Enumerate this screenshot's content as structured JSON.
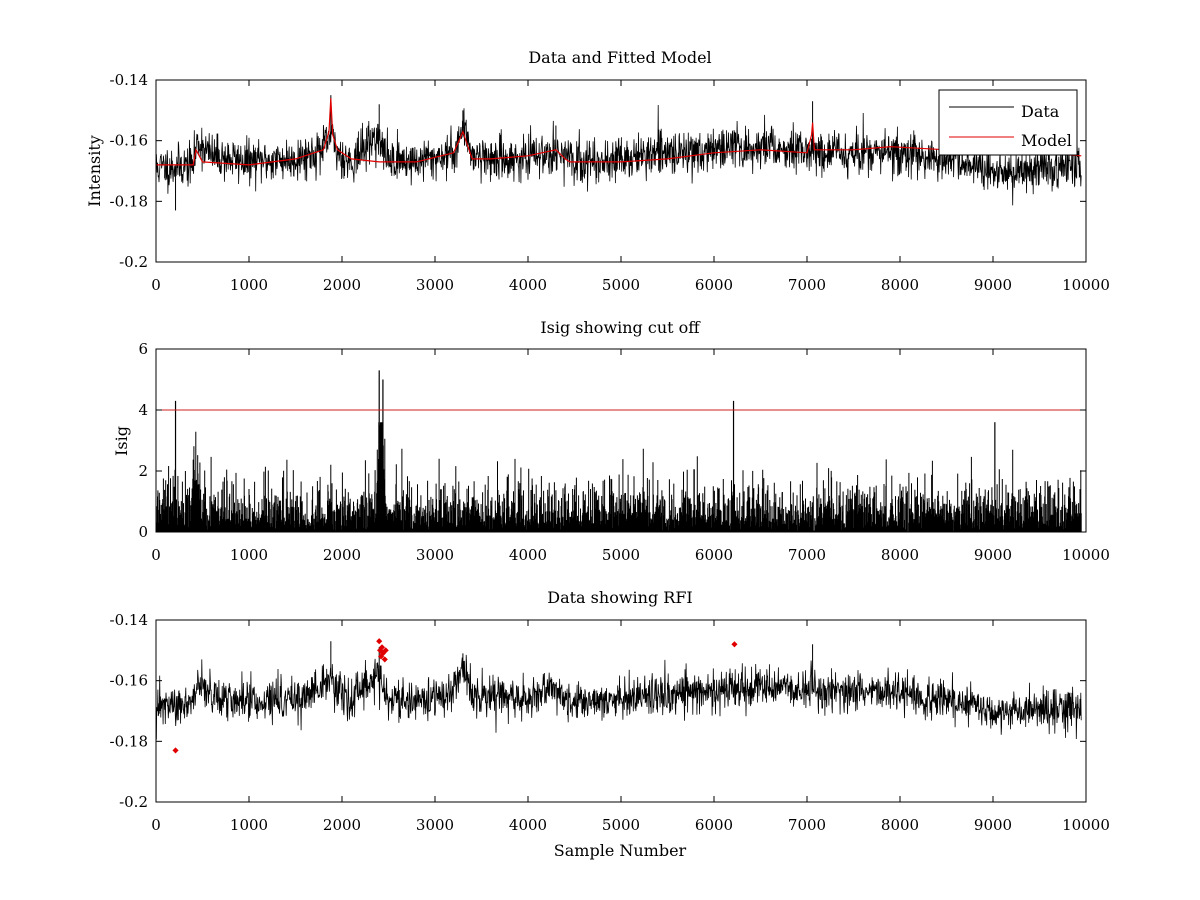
{
  "figure": {
    "background": "#ffffff"
  },
  "colors": {
    "data": "#000000",
    "model": "#e00000",
    "cutoff": "#d02020",
    "rfi": "#e00000"
  },
  "chart_data": [
    {
      "id": "top",
      "type": "line",
      "title": "Data and Fitted Model",
      "xlabel": "",
      "ylabel": "Intensity",
      "xlim": [
        0,
        10000
      ],
      "ylim": [
        -0.2,
        -0.14
      ],
      "ylim_display": "reversed (-0.14 at top, -0.2 at bottom)",
      "xticks": [
        0,
        1000,
        2000,
        3000,
        4000,
        5000,
        6000,
        7000,
        8000,
        9000,
        10000
      ],
      "yticks": [
        -0.14,
        -0.16,
        -0.18,
        -0.2
      ],
      "ytick_labels": [
        "-0.14",
        "-0.16",
        "-0.18",
        "-0.2"
      ],
      "legend": {
        "placement": "top-right",
        "entries": [
          "Data",
          "Model"
        ]
      },
      "series": [
        {
          "name": "Data",
          "kind": "noisy",
          "seed": 11,
          "noise_scale": 0.0035,
          "baseline_x": [
            0,
            400,
            450,
            600,
            1000,
            1500,
            1800,
            1880,
            1950,
            2100,
            2380,
            2420,
            2500,
            2800,
            3200,
            3300,
            3400,
            3600,
            4000,
            4300,
            4450,
            4600,
            5000,
            5500,
            6000,
            6500,
            7000,
            7400,
            7900,
            8500,
            9000,
            9500,
            9950
          ],
          "baseline_y": [
            -0.169,
            -0.168,
            -0.16,
            -0.165,
            -0.167,
            -0.166,
            -0.163,
            -0.158,
            -0.164,
            -0.167,
            -0.158,
            -0.162,
            -0.166,
            -0.167,
            -0.164,
            -0.156,
            -0.164,
            -0.166,
            -0.166,
            -0.163,
            -0.167,
            -0.167,
            -0.166,
            -0.164,
            -0.163,
            -0.162,
            -0.163,
            -0.164,
            -0.164,
            -0.166,
            -0.171,
            -0.169,
            -0.169
          ],
          "spikes": [
            [
              1880,
              -0.145
            ],
            [
              2400,
              -0.148
            ],
            [
              3300,
              -0.15
            ],
            [
              4300,
              -0.155
            ],
            [
              7060,
              -0.147
            ],
            [
              210,
              -0.183
            ]
          ]
        },
        {
          "name": "Model",
          "kind": "line",
          "x": [
            0,
            400,
            430,
            500,
            1000,
            1500,
            1800,
            1860,
            1880,
            1900,
            1950,
            2100,
            2400,
            2800,
            3200,
            3300,
            3400,
            3600,
            4000,
            4300,
            4400,
            4450,
            5000,
            5500,
            6000,
            6500,
            7000,
            7050,
            7060,
            7080,
            7500,
            7900,
            8500,
            9000,
            9950
          ],
          "y": [
            -0.168,
            -0.168,
            -0.163,
            -0.167,
            -0.168,
            -0.166,
            -0.163,
            -0.157,
            -0.146,
            -0.158,
            -0.163,
            -0.166,
            -0.167,
            -0.167,
            -0.164,
            -0.157,
            -0.166,
            -0.166,
            -0.165,
            -0.163,
            -0.166,
            -0.167,
            -0.167,
            -0.166,
            -0.164,
            -0.163,
            -0.164,
            -0.158,
            -0.154,
            -0.163,
            -0.163,
            -0.162,
            -0.163,
            -0.163,
            -0.165
          ]
        }
      ]
    },
    {
      "id": "middle",
      "type": "line",
      "title": "Isig showing cut off",
      "xlabel": "",
      "ylabel": "Isig",
      "xlim": [
        0,
        10000
      ],
      "ylim": [
        0,
        6
      ],
      "xticks": [
        0,
        1000,
        2000,
        3000,
        4000,
        5000,
        6000,
        7000,
        8000,
        9000,
        10000
      ],
      "yticks": [
        0,
        2,
        4,
        6
      ],
      "ytick_labels": [
        "0",
        "2",
        "4",
        "6"
      ],
      "cutoff": 4,
      "series": [
        {
          "name": "Isig",
          "kind": "isig",
          "seed": 23,
          "range": [
            0,
            9950
          ],
          "bumps": [
            [
              430,
              2.0,
              60
            ],
            [
              2420,
              3.5,
              60
            ]
          ],
          "spikes": [
            [
              210,
              4.3
            ],
            [
              2400,
              5.3
            ],
            [
              2440,
              5.0
            ],
            [
              6210,
              4.3
            ],
            [
              9020,
              3.6
            ]
          ]
        }
      ]
    },
    {
      "id": "bottom",
      "type": "line",
      "title": "Data showing RFI",
      "xlabel": "Sample Number",
      "ylabel": "",
      "xlim": [
        0,
        10000
      ],
      "ylim": [
        -0.2,
        -0.14
      ],
      "ylim_display": "reversed (-0.14 at top, -0.2 at bottom)",
      "xticks": [
        0,
        1000,
        2000,
        3000,
        4000,
        5000,
        6000,
        7000,
        8000,
        9000,
        10000
      ],
      "yticks": [
        -0.14,
        -0.16,
        -0.18,
        -0.2
      ],
      "ytick_labels": [
        "-0.14",
        "-0.16",
        "-0.18",
        "-0.2"
      ],
      "series": [
        {
          "name": "Data",
          "kind": "noisy",
          "seed": 47,
          "noise_scale": 0.0033,
          "baseline_x": [
            0,
            400,
            450,
            600,
            1000,
            1500,
            1800,
            1880,
            1950,
            2100,
            2380,
            2420,
            2500,
            2800,
            3200,
            3300,
            3400,
            3600,
            4000,
            4300,
            4450,
            4600,
            5000,
            5500,
            6000,
            6500,
            7000,
            7400,
            7900,
            8500,
            9000,
            9500,
            9950
          ],
          "baseline_y": [
            -0.169,
            -0.168,
            -0.16,
            -0.165,
            -0.167,
            -0.166,
            -0.163,
            -0.158,
            -0.164,
            -0.167,
            -0.158,
            -0.162,
            -0.166,
            -0.167,
            -0.164,
            -0.156,
            -0.164,
            -0.166,
            -0.166,
            -0.163,
            -0.167,
            -0.167,
            -0.166,
            -0.164,
            -0.163,
            -0.162,
            -0.163,
            -0.164,
            -0.164,
            -0.166,
            -0.171,
            -0.169,
            -0.169
          ],
          "spikes": [
            [
              1880,
              -0.147
            ],
            [
              2400,
              -0.149
            ],
            [
              3300,
              -0.151
            ],
            [
              7060,
              -0.148
            ]
          ]
        },
        {
          "name": "RFI",
          "kind": "markers",
          "points": [
            [
              210,
              -0.183
            ],
            [
              2400,
              -0.147
            ],
            [
              2410,
              -0.15
            ],
            [
              2420,
              -0.152
            ],
            [
              2430,
              -0.149
            ],
            [
              2440,
              -0.151
            ],
            [
              2460,
              -0.153
            ],
            [
              2470,
              -0.15
            ],
            [
              6220,
              -0.148
            ]
          ]
        }
      ]
    }
  ]
}
